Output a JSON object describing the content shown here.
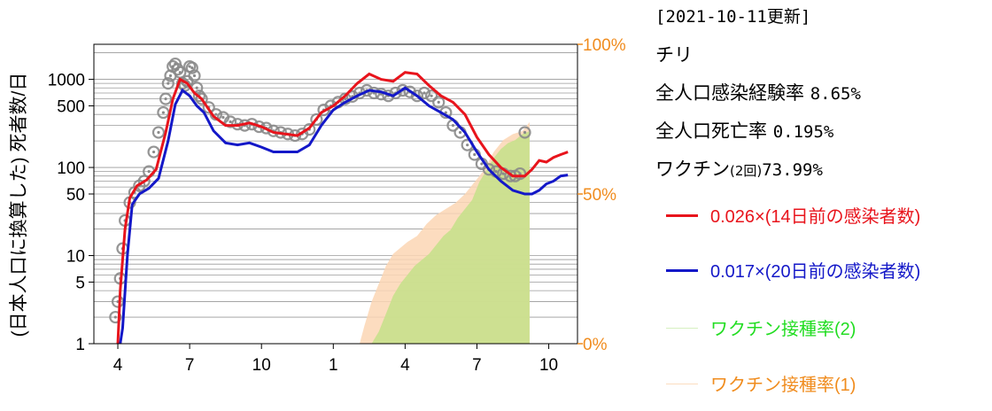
{
  "header": {
    "updated": "[2021-10-11更新]",
    "country": "チリ",
    "infection_label": "全人口感染経験率",
    "infection_value": "8.65%",
    "death_label": "全人口死亡率",
    "death_value": "0.195%",
    "vaccine_label": "ワクチン",
    "vaccine_dose": "(2回)",
    "vaccine_value": "73.99%"
  },
  "colors": {
    "red": "#e8141c",
    "blue": "#1418c8",
    "green": "#22dd22",
    "orange": "#f08c1e",
    "vacc2_fill": "#c8e08c",
    "vacc1_fill": "#fbd6b4",
    "dots": "#8a8a8a"
  },
  "chart_data": {
    "type": "line",
    "title": "",
    "ylabel": "(日本人口に換算した) 死者数/日",
    "y_scale": "log",
    "ylim": [
      1,
      2500
    ],
    "left_ticks": [
      "1",
      "5",
      "10",
      "50",
      "100",
      "500",
      "1000"
    ],
    "left_tick_values": [
      1,
      5,
      10,
      50,
      100,
      500,
      1000
    ],
    "right_ticks": [
      "0%",
      "50%",
      "100%"
    ],
    "right_tick_values": [
      0,
      50,
      100
    ],
    "x_ticks": [
      "4",
      "7",
      "10",
      "1",
      "4",
      "7",
      "10"
    ],
    "x_tick_months": [
      1,
      4,
      7,
      10,
      13,
      16,
      19
    ],
    "xlim": [
      0.0,
      20.2
    ],
    "legend": [
      {
        "label": "0.026×(14日前の感染者数)",
        "color": "#e8141c"
      },
      {
        "label": "0.017×(20日前の感染者数)",
        "color": "#1418c8"
      },
      {
        "label": "ワクチン接種率(2)",
        "color": "#22dd22"
      },
      {
        "label": "ワクチン接種率(1)",
        "color": "#f08c1e"
      }
    ],
    "series": [
      {
        "name": "0.026×(14日前の感染者数)",
        "color": "#e8141c",
        "x": [
          1.0,
          1.1,
          1.3,
          1.5,
          1.8,
          2.2,
          2.6,
          3.0,
          3.3,
          3.6,
          3.9,
          4.2,
          4.5,
          5.0,
          5.5,
          6.0,
          6.5,
          7.0,
          7.5,
          8.0,
          8.5,
          9.0,
          9.5,
          10.0,
          10.5,
          11.0,
          11.5,
          12.0,
          12.5,
          13.0,
          13.5,
          14.0,
          14.5,
          15.0,
          15.5,
          16.0,
          16.5,
          17.0,
          17.5,
          18.0,
          18.3,
          18.6,
          18.9,
          19.2,
          19.5,
          19.8
        ],
        "y": [
          1.0,
          4.0,
          20,
          45,
          62,
          72,
          95,
          250,
          600,
          1000,
          900,
          700,
          600,
          380,
          300,
          300,
          320,
          290,
          250,
          240,
          230,
          280,
          420,
          500,
          650,
          900,
          1150,
          1000,
          950,
          1200,
          1150,
          850,
          650,
          550,
          400,
          220,
          140,
          100,
          80,
          80,
          95,
          120,
          115,
          130,
          140,
          150
        ]
      },
      {
        "name": "0.017×(20日前の感染者数)",
        "color": "#1418c8",
        "x": [
          1.1,
          1.2,
          1.4,
          1.6,
          1.9,
          2.3,
          2.7,
          3.1,
          3.4,
          3.7,
          4.0,
          4.3,
          4.6,
          5.0,
          5.5,
          6.0,
          6.5,
          7.0,
          7.5,
          8.0,
          8.5,
          9.0,
          9.5,
          10.0,
          10.5,
          11.0,
          11.5,
          12.0,
          12.5,
          13.0,
          13.5,
          14.0,
          14.5,
          15.0,
          15.5,
          16.0,
          16.5,
          17.0,
          17.5,
          18.0,
          18.3,
          18.6,
          18.9,
          19.2,
          19.5,
          19.8
        ],
        "y": [
          1.0,
          1.5,
          10,
          38,
          50,
          58,
          75,
          200,
          520,
          750,
          650,
          500,
          420,
          260,
          190,
          180,
          190,
          170,
          150,
          150,
          150,
          180,
          300,
          450,
          550,
          650,
          750,
          720,
          650,
          800,
          650,
          500,
          420,
          350,
          250,
          150,
          95,
          70,
          55,
          50,
          50,
          55,
          65,
          70,
          80,
          82
        ]
      }
    ],
    "scatter": {
      "name": "deaths",
      "color": "#8a8a8a",
      "x": [
        0.9,
        1.0,
        1.1,
        1.2,
        1.3,
        1.5,
        1.7,
        1.9,
        2.1,
        2.3,
        2.5,
        2.7,
        2.9,
        3.0,
        3.1,
        3.2,
        3.3,
        3.4,
        3.5,
        3.6,
        3.7,
        3.8,
        3.9,
        4.0,
        4.1,
        4.2,
        4.3,
        4.4,
        4.5,
        4.8,
        5.1,
        5.4,
        5.7,
        6.0,
        6.3,
        6.6,
        6.9,
        7.2,
        7.5,
        7.8,
        8.1,
        8.4,
        8.7,
        9.0,
        9.3,
        9.6,
        9.9,
        10.2,
        10.5,
        10.8,
        11.1,
        11.4,
        11.7,
        12.0,
        12.3,
        12.6,
        12.9,
        13.2,
        13.5,
        13.8,
        14.1,
        14.4,
        14.7,
        15.0,
        15.3,
        15.6,
        15.9,
        16.2,
        16.5,
        16.8,
        17.1,
        17.4,
        17.6,
        17.8,
        18.0
      ],
      "y": [
        2.0,
        3.0,
        5.5,
        12,
        25,
        40,
        52,
        62,
        70,
        90,
        150,
        250,
        420,
        600,
        900,
        1100,
        1400,
        1500,
        1300,
        1200,
        900,
        850,
        950,
        1400,
        1350,
        1100,
        800,
        650,
        600,
        480,
        400,
        370,
        330,
        310,
        300,
        310,
        290,
        280,
        260,
        250,
        240,
        230,
        240,
        270,
        350,
        450,
        500,
        550,
        600,
        640,
        700,
        750,
        700,
        680,
        650,
        700,
        750,
        720,
        650,
        700,
        650,
        550,
        420,
        300,
        250,
        180,
        140,
        110,
        95,
        90,
        85,
        80,
        80,
        85,
        250
      ]
    },
    "vaccine_dose1": {
      "name": "ワクチン接種率(1)",
      "color": "#f08c1e",
      "months": [
        11.1,
        11.3,
        11.6,
        11.9,
        12.2,
        12.5,
        12.8,
        13.1,
        13.5,
        13.9,
        14.3,
        14.7,
        15.1,
        15.5,
        15.9,
        16.3,
        16.7,
        17.1,
        17.5,
        17.9,
        18.2
      ],
      "percent": [
        0,
        6,
        14,
        20,
        26,
        30,
        32,
        34,
        36,
        40,
        43,
        45,
        47,
        50,
        54,
        58,
        64,
        68,
        70,
        71,
        74
      ]
    },
    "vaccine_dose2": {
      "name": "ワクチン接種率(2)",
      "color": "#22dd22",
      "months": [
        11.6,
        11.9,
        12.2,
        12.5,
        12.8,
        13.1,
        13.4,
        13.7,
        14.0,
        14.3,
        14.6,
        14.9,
        15.2,
        15.5,
        15.8,
        16.1,
        16.4,
        16.7,
        17.0,
        17.3,
        17.6,
        17.9,
        18.2
      ],
      "percent": [
        0,
        4,
        10,
        16,
        20,
        23,
        26,
        28,
        30,
        33,
        36,
        38,
        42,
        45,
        48,
        54,
        58,
        62,
        65,
        67,
        68,
        70,
        71
      ]
    }
  }
}
